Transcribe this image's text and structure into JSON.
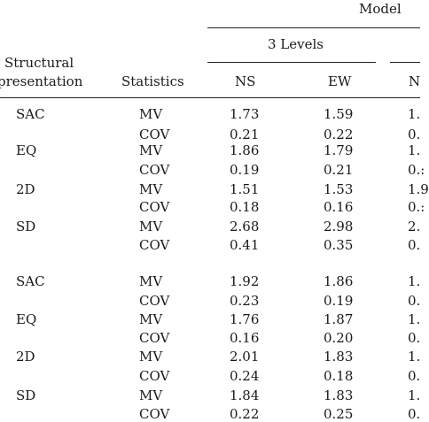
{
  "header": {
    "model_label": "Model",
    "levels_label": "3 Levels",
    "structural_line1": "Structural",
    "structural_line2": "presentation",
    "statistics_label": "Statistics",
    "col_ns": "NS",
    "col_ew": "EW",
    "col_cut": "N"
  },
  "rows": [
    {
      "group": "SAC",
      "stat": "MV",
      "ns": "1.73",
      "ew": "1.59",
      "cut": "1."
    },
    {
      "group": "",
      "stat": "COV",
      "ns": "0.21",
      "ew": "0.22",
      "cut": "0."
    },
    {
      "group": "EQ",
      "stat": "MV",
      "ns": "1.86",
      "ew": "1.79",
      "cut": "1."
    },
    {
      "group": "",
      "stat": "COV",
      "ns": "0.19",
      "ew": "0.21",
      "cut": "0.:"
    },
    {
      "group": "2D",
      "stat": "MV",
      "ns": "1.51",
      "ew": "1.53",
      "cut": "1.9"
    },
    {
      "group": "",
      "stat": "COV",
      "ns": "0.18",
      "ew": "0.16",
      "cut": "0.:"
    },
    {
      "group": "SD",
      "stat": "MV",
      "ns": "2.68",
      "ew": "2.98",
      "cut": "2."
    },
    {
      "group": "",
      "stat": "COV",
      "ns": "0.41",
      "ew": "0.35",
      "cut": "0."
    },
    {
      "group": "SAC",
      "stat": "MV",
      "ns": "1.92",
      "ew": "1.86",
      "cut": "1."
    },
    {
      "group": "",
      "stat": "COV",
      "ns": "0.23",
      "ew": "0.19",
      "cut": "0."
    },
    {
      "group": "EQ",
      "stat": "MV",
      "ns": "1.76",
      "ew": "1.87",
      "cut": "1."
    },
    {
      "group": "",
      "stat": "COV",
      "ns": "0.16",
      "ew": "0.20",
      "cut": "0."
    },
    {
      "group": "2D",
      "stat": "MV",
      "ns": "2.01",
      "ew": "1.83",
      "cut": "1."
    },
    {
      "group": "",
      "stat": "COV",
      "ns": "0.24",
      "ew": "0.18",
      "cut": "0."
    },
    {
      "group": "SD",
      "stat": "MV",
      "ns": "1.84",
      "ew": "1.83",
      "cut": "1."
    },
    {
      "group": "",
      "stat": "COV",
      "ns": "0.22",
      "ew": "0.25",
      "cut": "0."
    }
  ]
}
